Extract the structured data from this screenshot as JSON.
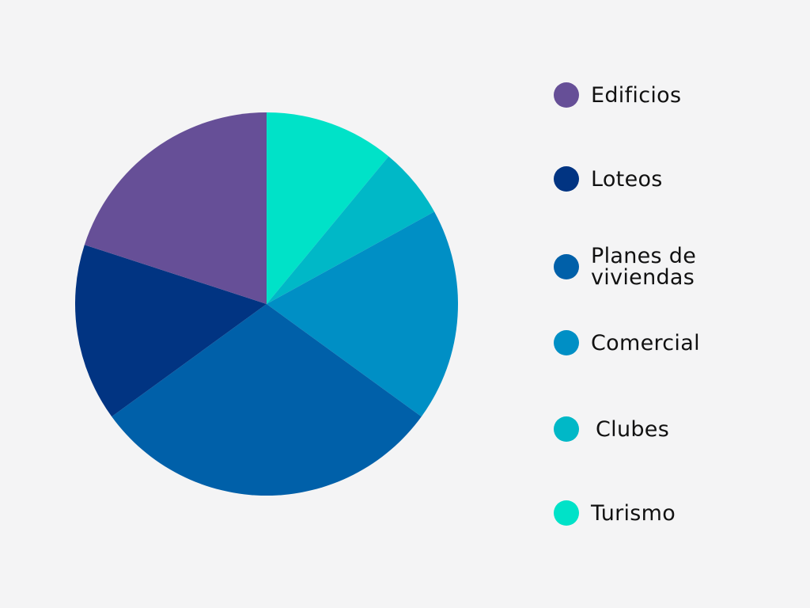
{
  "chart_data": {
    "type": "pie",
    "title": "",
    "start": "12 o'clock",
    "direction": "clockwise",
    "slices": [
      {
        "label": "Turismo",
        "value": 11,
        "color": "#00e2c8"
      },
      {
        "label": "Clubes",
        "value": 6,
        "color": "#00b8c7"
      },
      {
        "label": "Comercial",
        "value": 18,
        "color": "#008fc5"
      },
      {
        "label": "Planes de viviendas",
        "value": 30,
        "color": "#0060a9"
      },
      {
        "label": "Loteos",
        "value": 15,
        "color": "#013482"
      },
      {
        "label": "Edificios",
        "value": 20,
        "color": "#664f97"
      }
    ],
    "legend": [
      {
        "label": "Edificios",
        "color": "#664f97"
      },
      {
        "label": "Loteos",
        "color": "#013482"
      },
      {
        "label": "Planes de viviendas",
        "color": "#0060a9"
      },
      {
        "label": "Comercial",
        "color": "#008fc5"
      },
      {
        "label": "Clubes",
        "color": "#00b8c7"
      },
      {
        "label": "Turismo",
        "color": "#00e2c8"
      }
    ]
  }
}
